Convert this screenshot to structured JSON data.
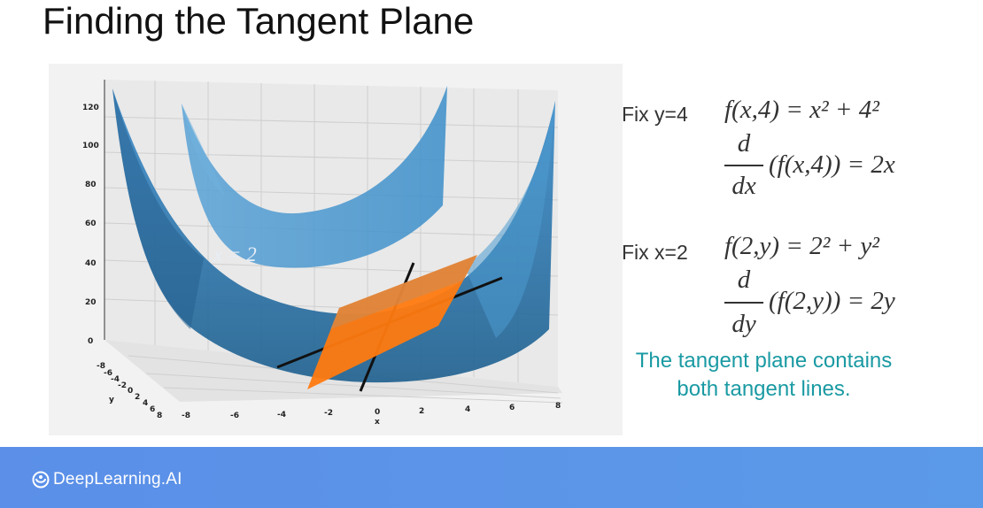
{
  "slide": {
    "title": "Finding the Tangent Plane"
  },
  "plot": {
    "z_ticks": [
      "120",
      "100",
      "80",
      "60",
      "40",
      "20",
      "0"
    ],
    "x_ticks": [
      "-8",
      "-6",
      "-4",
      "-2",
      "0",
      "2",
      "4",
      "6",
      "8"
    ],
    "y_ticks": [
      "-8",
      "-6",
      "-4",
      "-2",
      "0",
      "2",
      "4",
      "6",
      "8"
    ],
    "x_axis_label": "x",
    "y_axis_label": "y",
    "curve_label": "x = 2",
    "colors": {
      "surface": "#2f7fb5",
      "plane": "#ff7a10",
      "lines": "#111111"
    }
  },
  "equations": {
    "fix_y_label": "Fix y=4",
    "fix_y_func": "f(x,4) = x² + 4²",
    "fix_y_num": "d",
    "fix_y_den": "dx",
    "fix_y_body": "(f(x,4)) = 2x",
    "fix_x_label": "Fix x=2",
    "fix_x_func": "f(2,y) = 2² + y²",
    "fix_x_num": "d",
    "fix_x_den": "dy",
    "fix_x_body": "(f(2,y)) = 2y"
  },
  "note": {
    "line1": "The tangent plane contains",
    "line2": "both tangent lines."
  },
  "footer": {
    "brand": "DeepLearning.AI"
  }
}
